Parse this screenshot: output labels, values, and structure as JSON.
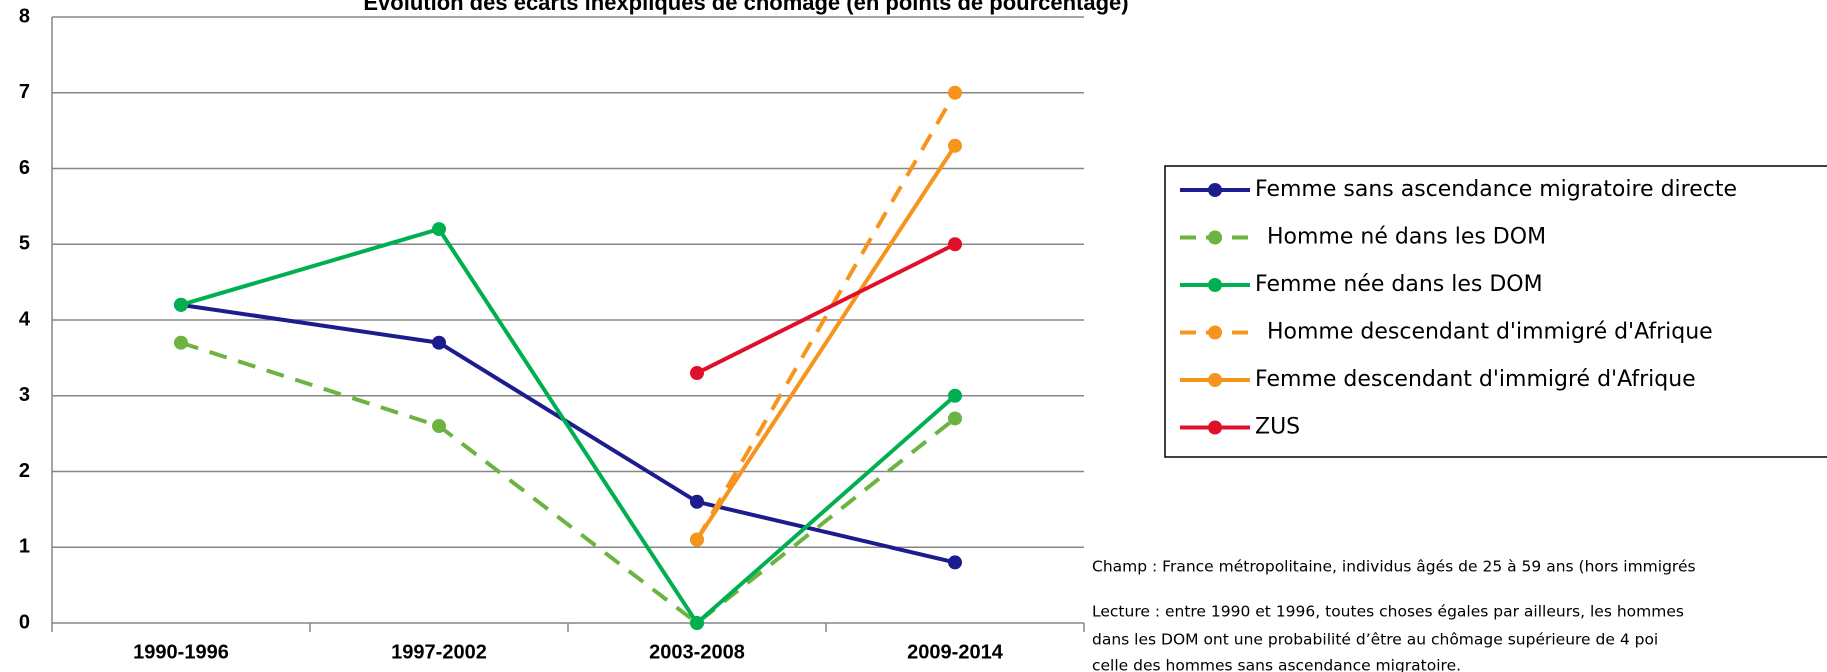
{
  "chart_data": {
    "type": "line",
    "title": "Evolution des écarts inexpliqués de chômage (en points de pourcentage)",
    "categories": [
      "1990-1996",
      "1997-2002",
      "2003-2008",
      "2009-2014"
    ],
    "series": [
      {
        "name": "Femme sans ascendance migratoire directe",
        "color": "#1c1c8e",
        "dashed": false,
        "values": [
          4.2,
          3.7,
          1.6,
          0.8
        ]
      },
      {
        "name": "Homme né dans les DOM",
        "color": "#6cb33f",
        "dashed": true,
        "values": [
          3.7,
          2.6,
          0.0,
          2.7
        ]
      },
      {
        "name": "Femme née dans les DOM",
        "color": "#00b050",
        "dashed": false,
        "values": [
          4.2,
          5.2,
          0.0,
          3.0
        ]
      },
      {
        "name": "Homme descendant d'immigré d'Afrique",
        "color": "#f7941d",
        "dashed": true,
        "values": [
          null,
          null,
          1.1,
          7.0
        ]
      },
      {
        "name": "Femme descendant d'immigré d'Afrique",
        "color": "#f7941d",
        "dashed": false,
        "values": [
          null,
          null,
          1.1,
          6.3
        ]
      },
      {
        "name": "ZUS",
        "color": "#e0102b",
        "dashed": false,
        "values": [
          null,
          null,
          3.3,
          5.0
        ]
      }
    ],
    "ylim": [
      0,
      8
    ],
    "yticks": [
      0,
      1,
      2,
      3,
      4,
      5,
      6,
      7,
      8
    ],
    "grid": true,
    "legend": "right",
    "notes": [
      "Champ : France métropolitaine, individus âgés de 25 à 59 ans (hors immigrés",
      "Lecture : entre 1990 et 1996, toutes choses égales par ailleurs, les hommes",
      "dans les DOM ont une probabilité d’être au chômage supérieure de 4 poi",
      "celle des hommes sans ascendance migratoire."
    ]
  }
}
